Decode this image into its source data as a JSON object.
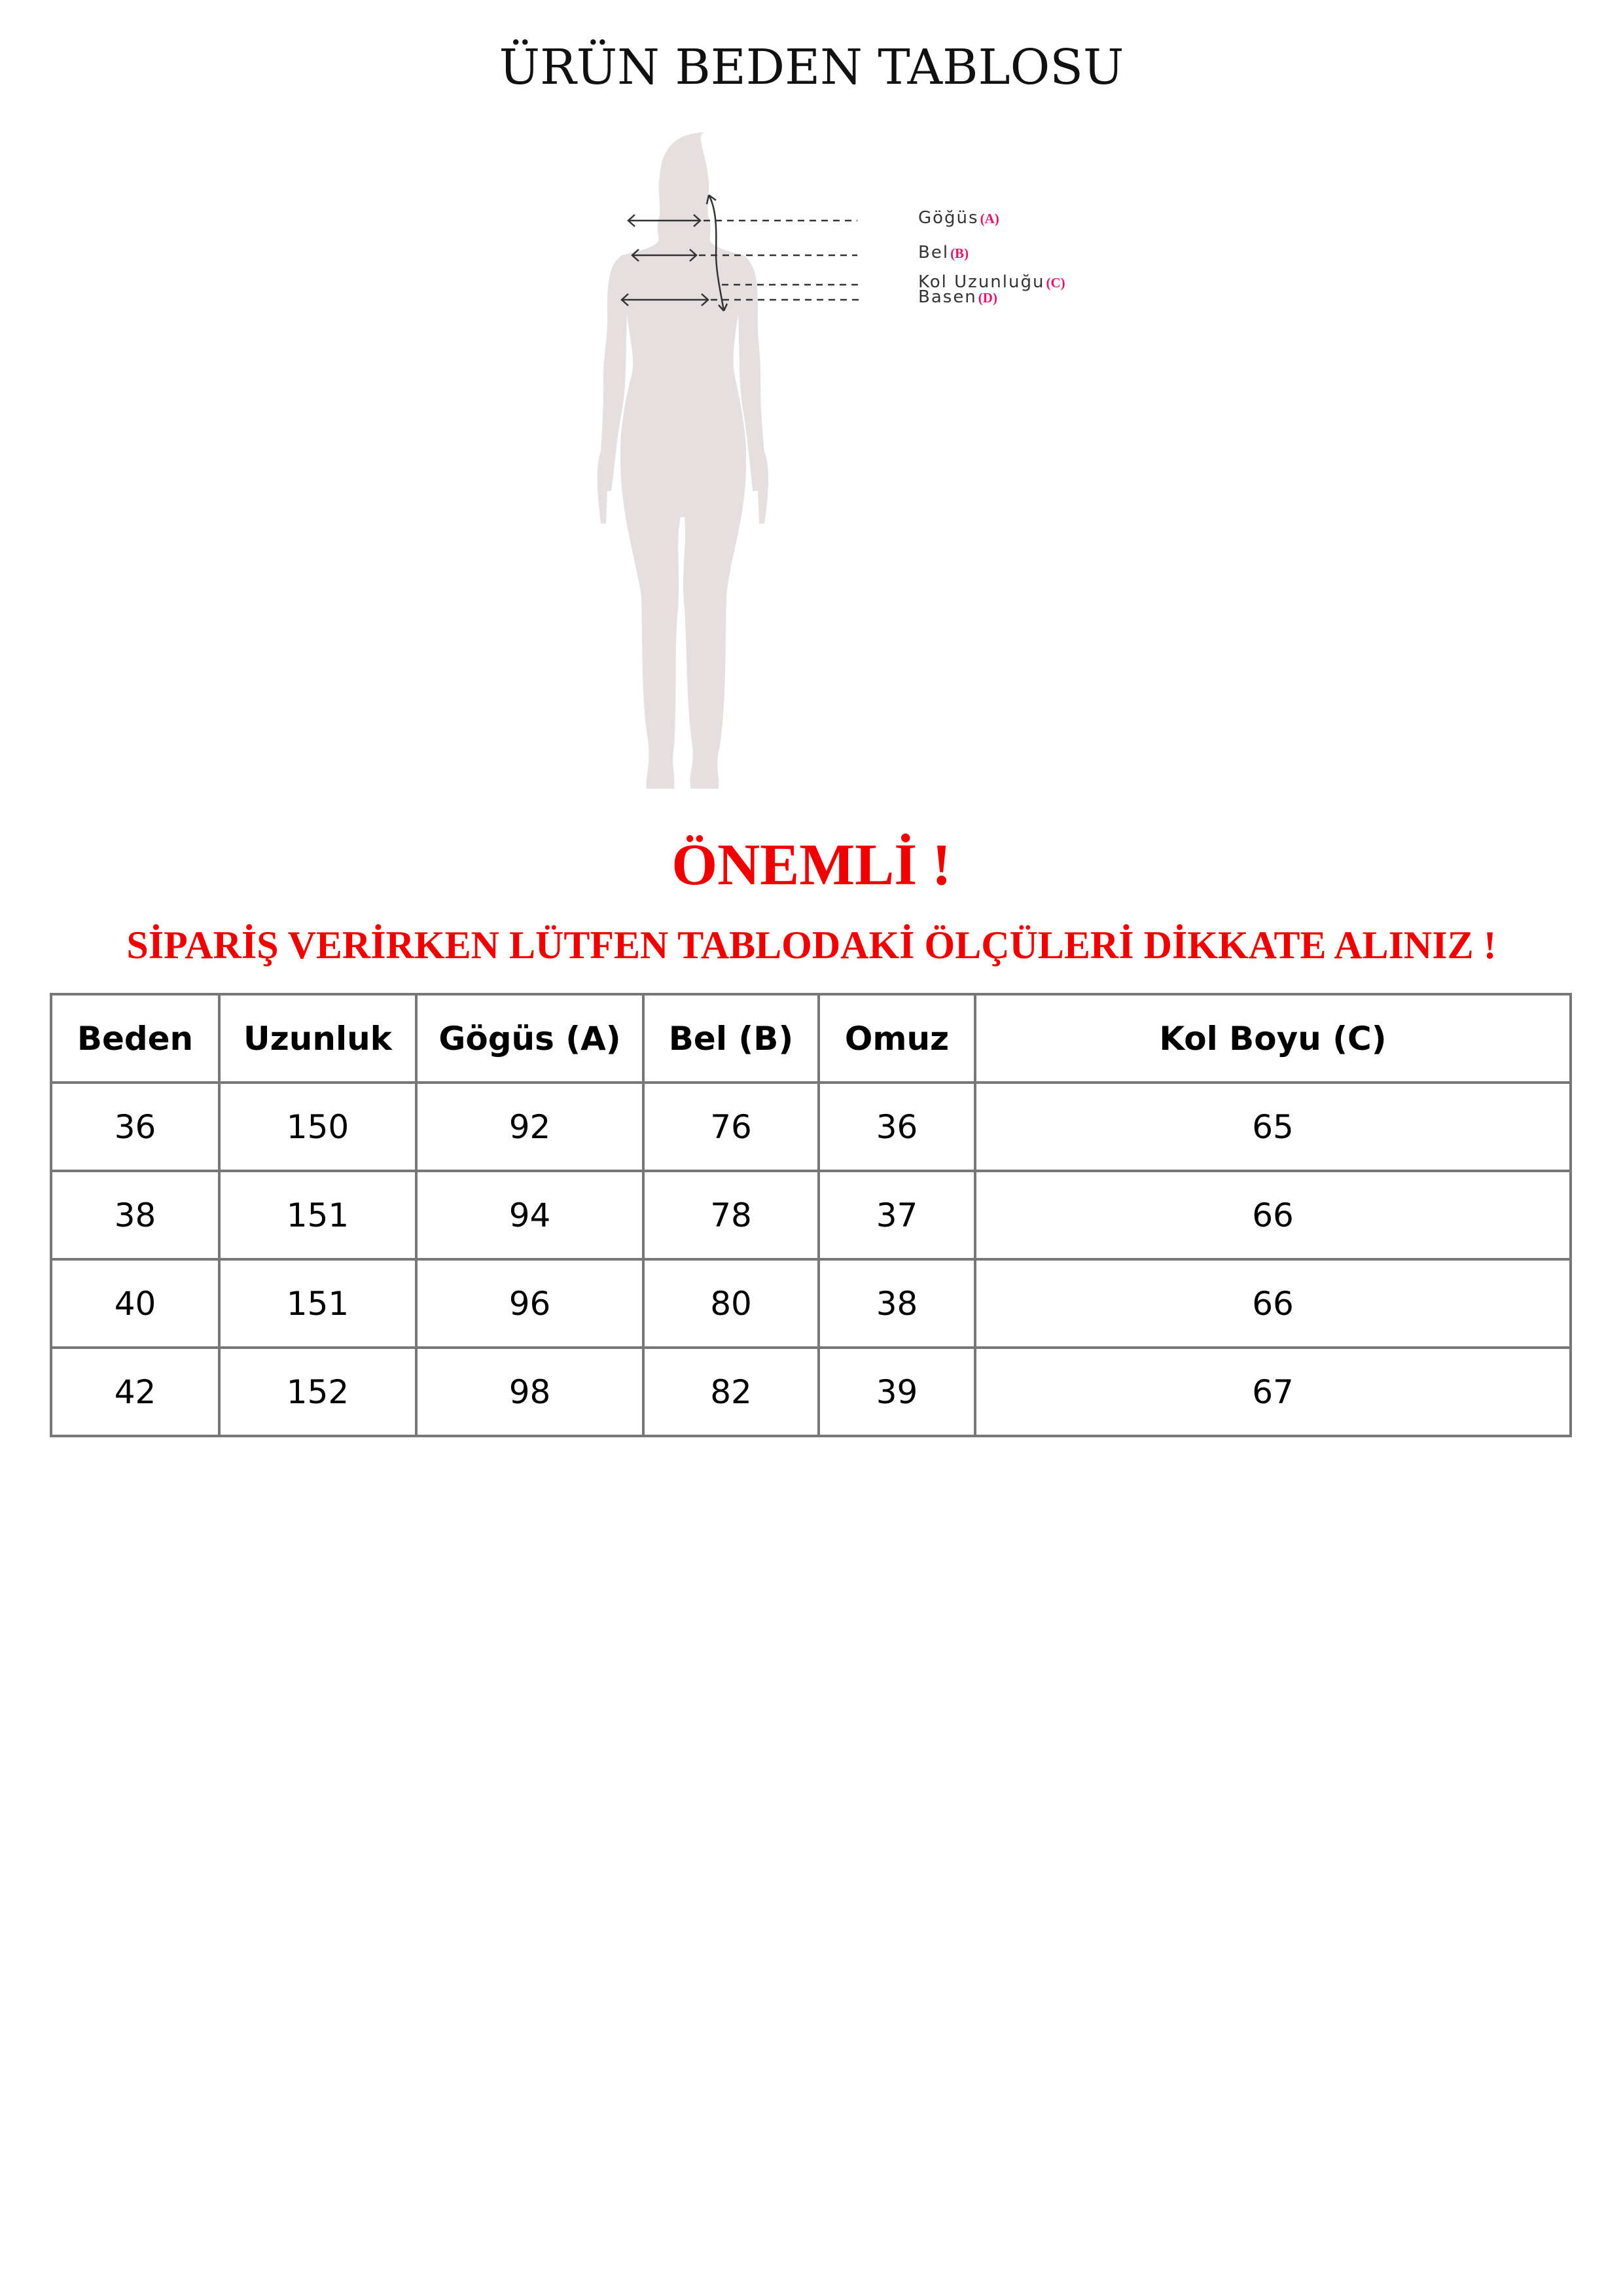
{
  "title": "ÜRÜN BEDEN TABLOSU",
  "figure": {
    "labels": [
      {
        "text": "Göğüs",
        "code": "(A)"
      },
      {
        "text": "Bel",
        "code": "(B)"
      },
      {
        "text": "Kol Uzunluğu",
        "code": "(C)"
      },
      {
        "text": "Basen",
        "code": "(D)"
      }
    ],
    "silhouette_color": "#e6dfe0",
    "code_color": "#e8146c"
  },
  "notice": {
    "heading": "ÖNEMLİ !",
    "message": "SİPARİŞ VERİRKEN LÜTFEN TABLODAKİ ÖLÇÜLERİ DİKKATE ALINIZ !",
    "color": "#f00000"
  },
  "table": {
    "headers": [
      "Beden",
      "Uzunluk",
      "Gögüs (A)",
      "Bel (B)",
      "Omuz",
      "Kol Boyu (C)"
    ],
    "rows": [
      [
        "36",
        "150",
        "92",
        "76",
        "36",
        "65"
      ],
      [
        "38",
        "151",
        "94",
        "78",
        "37",
        "66"
      ],
      [
        "40",
        "151",
        "96",
        "80",
        "38",
        "66"
      ],
      [
        "42",
        "152",
        "98",
        "82",
        "39",
        "67"
      ]
    ]
  }
}
